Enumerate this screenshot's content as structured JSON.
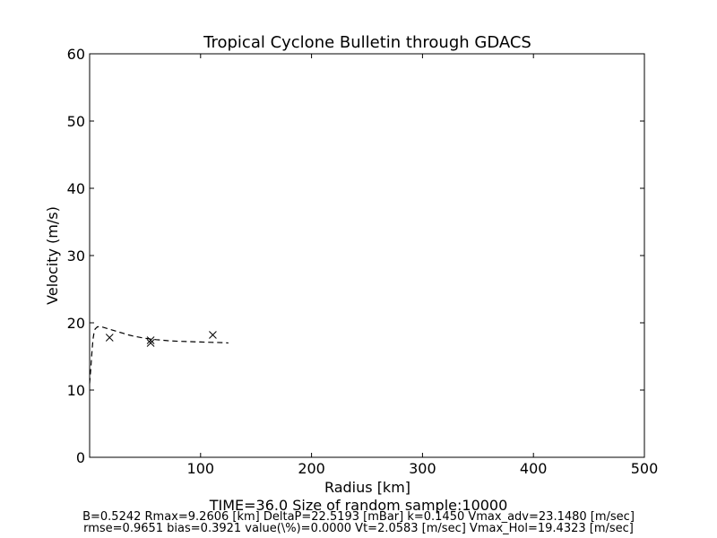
{
  "chart_data": {
    "type": "line",
    "title": "Tropical Cyclone Bulletin through GDACS",
    "xlabel": "Radius [km]",
    "ylabel": "Velocity (m/s)",
    "xlim": [
      0,
      500
    ],
    "ylim": [
      0,
      60
    ],
    "xticks": [
      100,
      200,
      300,
      400,
      500
    ],
    "yticks": [
      0,
      10,
      20,
      30,
      40,
      50,
      60
    ],
    "grid": false,
    "series": [
      {
        "style": "dashed-line",
        "color": "#000000",
        "x": [
          0,
          1,
          2,
          3,
          4,
          5,
          7,
          9.26,
          12,
          16,
          20,
          25,
          30,
          35,
          40,
          50,
          60,
          70,
          80,
          90,
          100,
          110,
          120,
          125
        ],
        "y": [
          11.0,
          13.0,
          15.5,
          17.5,
          18.6,
          19.1,
          19.4,
          19.43,
          19.35,
          19.15,
          18.95,
          18.7,
          18.45,
          18.2,
          18.0,
          17.7,
          17.5,
          17.35,
          17.25,
          17.2,
          17.15,
          17.1,
          17.05,
          17.0
        ]
      },
      {
        "style": "x-markers",
        "color": "#000000",
        "x": [
          18,
          55,
          55,
          111
        ],
        "y": [
          17.8,
          17.4,
          17.0,
          18.2
        ]
      }
    ]
  },
  "captions": {
    "line1": "TIME=36.0     Size of random sample:10000",
    "line2": "B=0.5242 Rmax=9.2606 [km]  DeltaP=22.5193 [mBar] k=0.1450 Vmax_adv=23.1480 [m/sec]",
    "line3": "rmse=0.9651 bias=0.3921 value(\\%)=0.0000 Vt=2.0583 [m/sec] Vmax_Hol=19.4323 [m/sec]"
  }
}
